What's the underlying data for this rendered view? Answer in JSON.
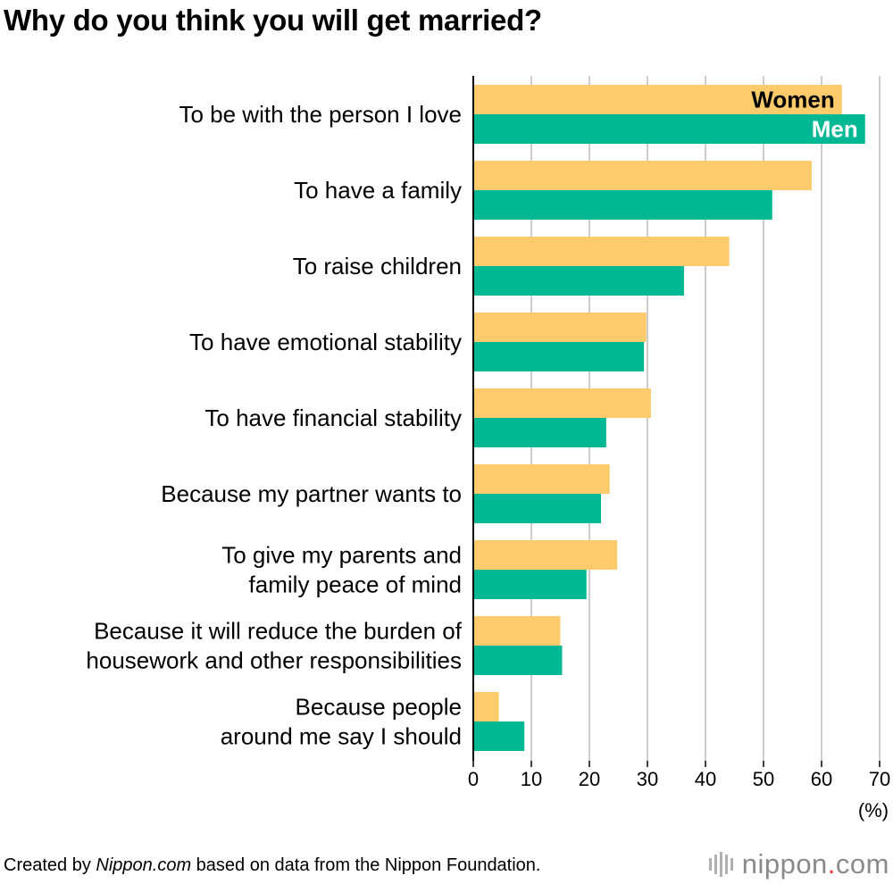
{
  "chart_data": {
    "type": "bar",
    "orientation": "horizontal",
    "title": "Why do you think you will get married?",
    "categories": [
      [
        "To be with the person I love"
      ],
      [
        "To have a family"
      ],
      [
        "To raise children"
      ],
      [
        "To have emotional stability"
      ],
      [
        "To have financial stability"
      ],
      [
        "Because my partner wants to"
      ],
      [
        "To give my parents and",
        "family peace of mind"
      ],
      [
        "Because it will reduce the burden of",
        "housework and other responsibilities"
      ],
      [
        "Because people",
        "around me say I should"
      ]
    ],
    "series": [
      {
        "name": "Women",
        "color": "#fdca6c",
        "label_color": "#000000",
        "values": [
          63.5,
          58.3,
          44.1,
          29.8,
          30.6,
          23.5,
          24.8,
          15.0,
          4.4
        ]
      },
      {
        "name": "Men",
        "color": "#00b894",
        "label_color": "#ffffff",
        "values": [
          67.5,
          51.5,
          36.3,
          29.4,
          22.9,
          22.0,
          19.5,
          15.3,
          8.8
        ]
      }
    ],
    "xlim": [
      0,
      70
    ],
    "xticks": [
      0,
      10,
      20,
      30,
      40,
      50,
      60,
      70
    ],
    "xunit": "(%)",
    "grid": true,
    "legend": "inside-top-bar"
  },
  "footer": {
    "prefix": "Created by ",
    "site": "Nippon.com",
    "suffix": " based on data from the Nippon Foundation."
  },
  "brand": {
    "name": "nippon",
    "dot": ".",
    "tld": "com"
  }
}
